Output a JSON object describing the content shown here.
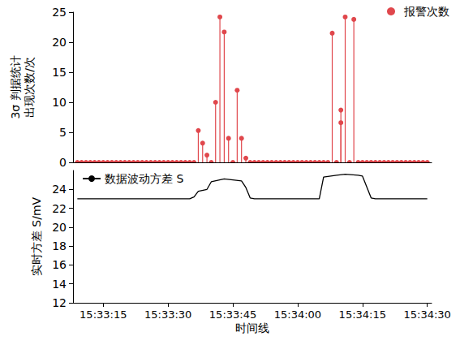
{
  "chart_data": [
    {
      "type": "stem",
      "ylabel": "3σ 判据统计出现次数/次",
      "x": [
        "15:33:09",
        "15:33:10",
        "15:33:11",
        "15:33:12",
        "15:33:13",
        "15:33:14",
        "15:33:15",
        "15:33:16",
        "15:33:17",
        "15:33:18",
        "15:33:19",
        "15:33:20",
        "15:33:21",
        "15:33:22",
        "15:33:23",
        "15:33:24",
        "15:33:25",
        "15:33:26",
        "15:33:27",
        "15:33:28",
        "15:33:29",
        "15:33:30",
        "15:33:31",
        "15:33:32",
        "15:33:33",
        "15:33:34",
        "15:33:35",
        "15:33:36",
        "15:33:37",
        "15:33:38",
        "15:33:39",
        "15:33:40",
        "15:33:41",
        "15:33:42",
        "15:33:43",
        "15:33:44",
        "15:33:45",
        "15:33:46",
        "15:33:47",
        "15:33:48",
        "15:33:49",
        "15:33:50",
        "15:33:51",
        "15:33:52",
        "15:33:53",
        "15:33:54",
        "15:33:55",
        "15:33:56",
        "15:33:57",
        "15:33:58",
        "15:33:59",
        "15:34:00",
        "15:34:01",
        "15:34:02",
        "15:34:03",
        "15:34:04",
        "15:34:05",
        "15:34:06",
        "15:34:07",
        "15:34:08",
        "15:34:09",
        "15:34:10",
        "15:34:10",
        "15:34:11",
        "15:34:12",
        "15:34:13",
        "15:34:14",
        "15:34:15",
        "15:34:16",
        "15:34:17",
        "15:34:18",
        "15:34:19",
        "15:34:20",
        "15:34:21",
        "15:34:22",
        "15:34:23",
        "15:34:24",
        "15:34:25",
        "15:34:26",
        "15:34:27",
        "15:34:28",
        "15:34:29",
        "15:34:30"
      ],
      "series": [
        {
          "name": "报警次数",
          "color": "#e0474c",
          "marker": "circle",
          "values": [
            0,
            0,
            0,
            0,
            0,
            0,
            0,
            0,
            0,
            0,
            0,
            0,
            0,
            0,
            0,
            0,
            0,
            0,
            0,
            0,
            0,
            0,
            0,
            0,
            0,
            0,
            0,
            0,
            5.3,
            3.2,
            1.2,
            0,
            10,
            24.2,
            21.7,
            4,
            0,
            12,
            4,
            0.7,
            0,
            0,
            0,
            0,
            0,
            0,
            0,
            0,
            0,
            0,
            0,
            0,
            0,
            0,
            0,
            0,
            0,
            0,
            0,
            21.5,
            0,
            8.7,
            6.6,
            24.2,
            0,
            23.8,
            0,
            0,
            0,
            0,
            0,
            0,
            0,
            0,
            0,
            0,
            0,
            0,
            0,
            0,
            0,
            0,
            0
          ]
        }
      ],
      "xlim": [
        "15:33:08",
        "15:34:31"
      ],
      "ylim": [
        0,
        25
      ],
      "yticks": [
        0,
        5,
        10,
        15,
        20,
        25
      ],
      "tick_labels": "y",
      "legend": "upper right",
      "grid": false
    },
    {
      "type": "line",
      "xlabel": "时间线",
      "ylabel": "实时方差 S/mV",
      "x": [
        "15:33:09",
        "15:33:35",
        "15:33:36",
        "15:33:37",
        "15:33:39",
        "15:33:40",
        "15:33:43",
        "15:33:45",
        "15:33:47",
        "15:33:48",
        "15:33:49",
        "15:33:50",
        "15:34:05",
        "15:34:06",
        "15:34:09",
        "15:34:11",
        "15:34:14",
        "15:34:15",
        "15:34:17",
        "15:34:18",
        "15:34:30"
      ],
      "series": [
        {
          "name": "数据波动方差 S",
          "color": "#000000",
          "line_style": "solid",
          "values": [
            23.0,
            23.0,
            23.2,
            23.8,
            24.0,
            24.8,
            25.1,
            25.0,
            24.9,
            24.2,
            23.1,
            23.0,
            23.0,
            25.3,
            25.5,
            25.6,
            25.5,
            25.4,
            23.1,
            23.0,
            23.0
          ]
        }
      ],
      "xlim": [
        "15:33:08",
        "15:34:31"
      ],
      "xticks": [
        "15:33:15",
        "15:33:30",
        "15:33:45",
        "15:34:00",
        "15:34:15",
        "15:34:30"
      ],
      "ylim": [
        12,
        26
      ],
      "yticks": [
        12,
        14,
        16,
        18,
        20,
        22,
        24
      ],
      "legend": "upper left",
      "grid": false
    }
  ]
}
